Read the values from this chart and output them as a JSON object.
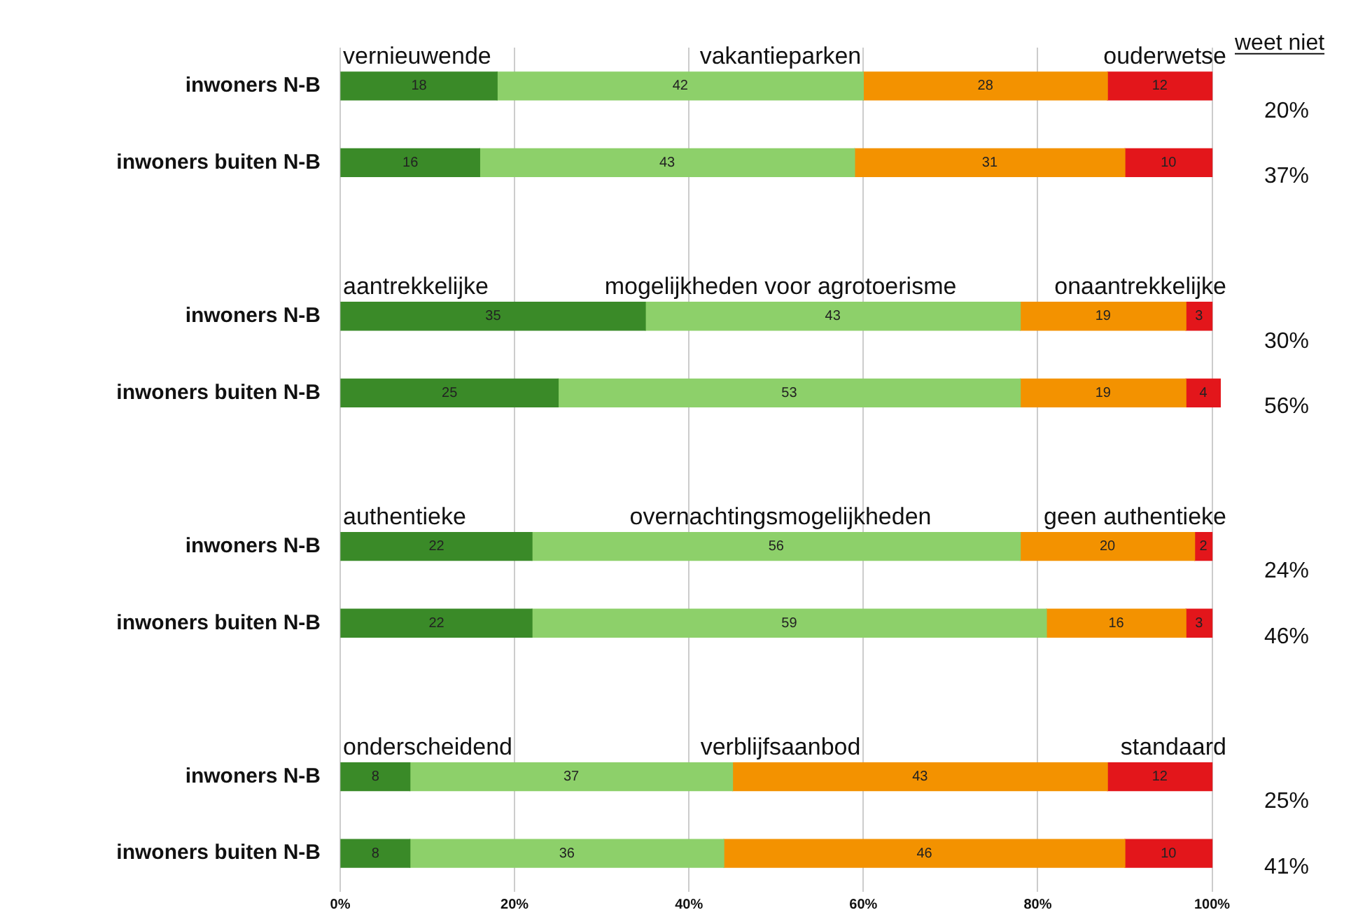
{
  "chart_data": {
    "type": "bar",
    "orientation": "horizontal",
    "stacked": true,
    "categories": [
      "inwoners N-B",
      "inwoners buiten N-B",
      null,
      "inwoners N-B",
      "inwoners buiten N-B",
      null,
      "inwoners N-B",
      "inwoners buiten N-B",
      null,
      "inwoners N-B",
      "inwoners buiten N-B"
    ],
    "series": [
      {
        "color": "#3a8a28",
        "values": [
          18,
          16,
          null,
          35,
          25,
          null,
          22,
          22,
          null,
          8,
          8
        ]
      },
      {
        "color": "#8dd06a",
        "values": [
          42,
          43,
          null,
          43,
          53,
          null,
          56,
          59,
          null,
          37,
          36
        ]
      },
      {
        "color": "#f39200",
        "values": [
          28,
          31,
          null,
          19,
          19,
          null,
          20,
          16,
          null,
          43,
          46
        ]
      },
      {
        "color": "#e3161b",
        "values": [
          12,
          10,
          null,
          3,
          4,
          null,
          2,
          3,
          null,
          12,
          10
        ]
      }
    ],
    "xlim": [
      0,
      101
    ],
    "xticks": [
      {
        "value": 0,
        "label": "0%"
      },
      {
        "value": 20,
        "label": "20%"
      },
      {
        "value": 40,
        "label": "40%"
      },
      {
        "value": 60,
        "label": "60%"
      },
      {
        "value": 80,
        "label": "80%"
      },
      {
        "value": 100,
        "label": "100%"
      }
    ],
    "grid": "x",
    "data_labels": true,
    "annotations": [
      "vernieuwende",
      "vakantieparken",
      "ouderwetse",
      "aantrekkelijke",
      "mogelijkheden voor agrotoerisme",
      "onaantrekkelijke",
      "authentieke",
      "overnachtingsmogelijkheden",
      "geen authentieke",
      "onderscheidend",
      "verblijfsaanbod",
      "standaard",
      "weet niet",
      "20%",
      "37%",
      "30%",
      "56%",
      "24%",
      "46%",
      "25%",
      "41%"
    ]
  }
}
